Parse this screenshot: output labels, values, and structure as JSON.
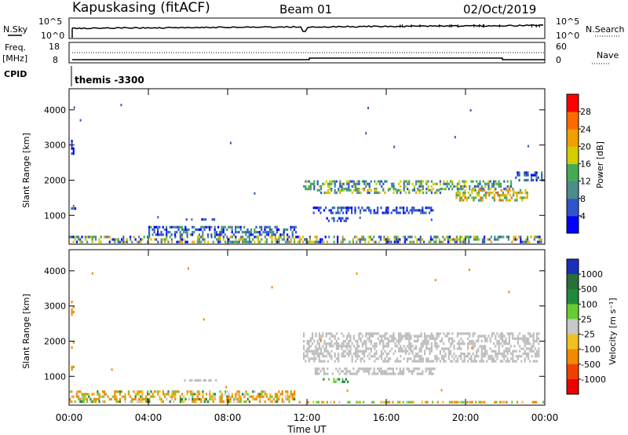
{
  "header": {
    "station": "Kapuskasing (fitACF)",
    "beam": "Beam 01",
    "date": "02/Oct/2019"
  },
  "noise_panel": {
    "left_label": "N.Sky",
    "right_label": "N.Search",
    "left_ticks": [
      "10^5",
      "10^0"
    ],
    "right_ticks": [
      "10^5",
      "10^0"
    ]
  },
  "freq_panel": {
    "left_label_1": "Freq.",
    "left_label_2": "[MHz]",
    "right_label": "Nave",
    "left_ticks": [
      "18",
      "8"
    ],
    "right_ticks": [
      "60",
      "0"
    ]
  },
  "cpid_panel": {
    "label": "CPID",
    "value": "themis -3300"
  },
  "chart_data": [
    {
      "type": "heatmap",
      "title": "",
      "xlabel": "",
      "ylabel": "Slant Range [km]",
      "x_ticks": [
        "00:00",
        "04:00",
        "08:00",
        "12:00",
        "16:00",
        "20:00",
        "00:00"
      ],
      "x_range_hours": [
        0,
        24
      ],
      "y_ticks": [
        1000,
        2000,
        3000,
        4000
      ],
      "y_range_km": [
        180,
        4600
      ],
      "colorbar": {
        "label": "Power [dB]",
        "ticks": [
          "4",
          "8",
          "12",
          "16",
          "20",
          "24",
          "28"
        ],
        "range": [
          0,
          30
        ],
        "colors": [
          "#0000ff",
          "#2f55c8",
          "#4c8c8c",
          "#44aa55",
          "#d4cc00",
          "#f0a000",
          "#ff6a00",
          "#ff0000"
        ]
      },
      "regions": [
        {
          "t0": 0.0,
          "t1": 24.0,
          "r0": 190,
          "r1": 420,
          "v0": 2,
          "v1": 22
        },
        {
          "t0": 0.1,
          "t1": 0.4,
          "r0": 1100,
          "r1": 1300,
          "v0": 2,
          "v1": 8
        },
        {
          "t0": 0.1,
          "t1": 0.3,
          "r0": 1750,
          "r1": 2000,
          "v0": 2,
          "v1": 8
        },
        {
          "t0": 0.1,
          "t1": 0.3,
          "r0": 2700,
          "r1": 3150,
          "v0": 2,
          "v1": 6
        },
        {
          "t0": 5.8,
          "t1": 7.5,
          "r0": 820,
          "r1": 920,
          "v0": 2,
          "v1": 10
        },
        {
          "t0": 11.8,
          "t1": 22.5,
          "r0": 1700,
          "r1": 2000,
          "v0": 4,
          "v1": 18
        },
        {
          "t0": 12.5,
          "t1": 19.0,
          "r0": 1550,
          "r1": 1750,
          "v0": 6,
          "v1": 20
        },
        {
          "t0": 19.5,
          "t1": 23.2,
          "r0": 1350,
          "r1": 1750,
          "v0": 10,
          "v1": 26
        },
        {
          "t0": 22.5,
          "t1": 24.0,
          "r0": 1900,
          "r1": 2250,
          "v0": 2,
          "v1": 10
        },
        {
          "t0": 12.3,
          "t1": 18.5,
          "r0": 1000,
          "r1": 1250,
          "v0": 2,
          "v1": 8
        },
        {
          "t0": 12.8,
          "t1": 14.2,
          "r0": 800,
          "r1": 950,
          "v0": 2,
          "v1": 10
        },
        {
          "t0": 4.0,
          "t1": 11.5,
          "r0": 400,
          "r1": 700,
          "v0": 2,
          "v1": 12
        }
      ]
    },
    {
      "type": "heatmap",
      "title": "",
      "xlabel": "Time UT",
      "ylabel": "Slant Range [km]",
      "x_ticks": [
        "00:00",
        "04:00",
        "08:00",
        "12:00",
        "16:00",
        "20:00",
        "00:00"
      ],
      "x_range_hours": [
        0,
        24
      ],
      "y_ticks": [
        1000,
        2000,
        3000,
        4000
      ],
      "y_range_km": [
        180,
        4600
      ],
      "colorbar": {
        "label": "Velocity [m s⁻¹]",
        "ticks": [
          "1000",
          "500",
          "100",
          "25",
          "-25",
          "-100",
          "-500",
          "-1000"
        ],
        "colors": [
          "#1c2fb8",
          "#2a6e3a",
          "#1f8a3b",
          "#66cc33",
          "#c8c8c8",
          "#f0c020",
          "#f08a00",
          "#f04000",
          "#ee0000"
        ],
        "ground_scatter_color": "#bebebe"
      },
      "regions": [
        {
          "t0": 0.0,
          "t1": 11.5,
          "r0": 190,
          "r1": 600,
          "kind": "ionospheric",
          "vmin": -300,
          "vmax": 150
        },
        {
          "t0": 0.1,
          "t1": 0.4,
          "r0": 1100,
          "r1": 1300,
          "kind": "ionospheric",
          "vmin": -300,
          "vmax": -100
        },
        {
          "t0": 0.1,
          "t1": 0.3,
          "r0": 1750,
          "r1": 2000,
          "kind": "ionospheric",
          "vmin": -300,
          "vmax": -100
        },
        {
          "t0": 0.1,
          "t1": 0.3,
          "r0": 2700,
          "r1": 3150,
          "kind": "ionospheric",
          "vmin": -500,
          "vmax": -100
        },
        {
          "t0": 5.8,
          "t1": 7.5,
          "r0": 820,
          "r1": 920,
          "kind": "ground",
          "vmin": -25,
          "vmax": 25
        },
        {
          "t0": 11.8,
          "t1": 23.8,
          "r0": 1350,
          "r1": 2250,
          "kind": "ground",
          "vmin": -25,
          "vmax": 25
        },
        {
          "t0": 12.3,
          "t1": 18.5,
          "r0": 1000,
          "r1": 1250,
          "kind": "ground",
          "vmin": -25,
          "vmax": 25
        },
        {
          "t0": 12.8,
          "t1": 14.2,
          "r0": 800,
          "r1": 950,
          "kind": "ionospheric",
          "vmin": 25,
          "vmax": 200
        },
        {
          "t0": 11.5,
          "t1": 24.0,
          "r0": 190,
          "r1": 300,
          "kind": "ionospheric",
          "vmin": -200,
          "vmax": 100
        }
      ]
    }
  ]
}
